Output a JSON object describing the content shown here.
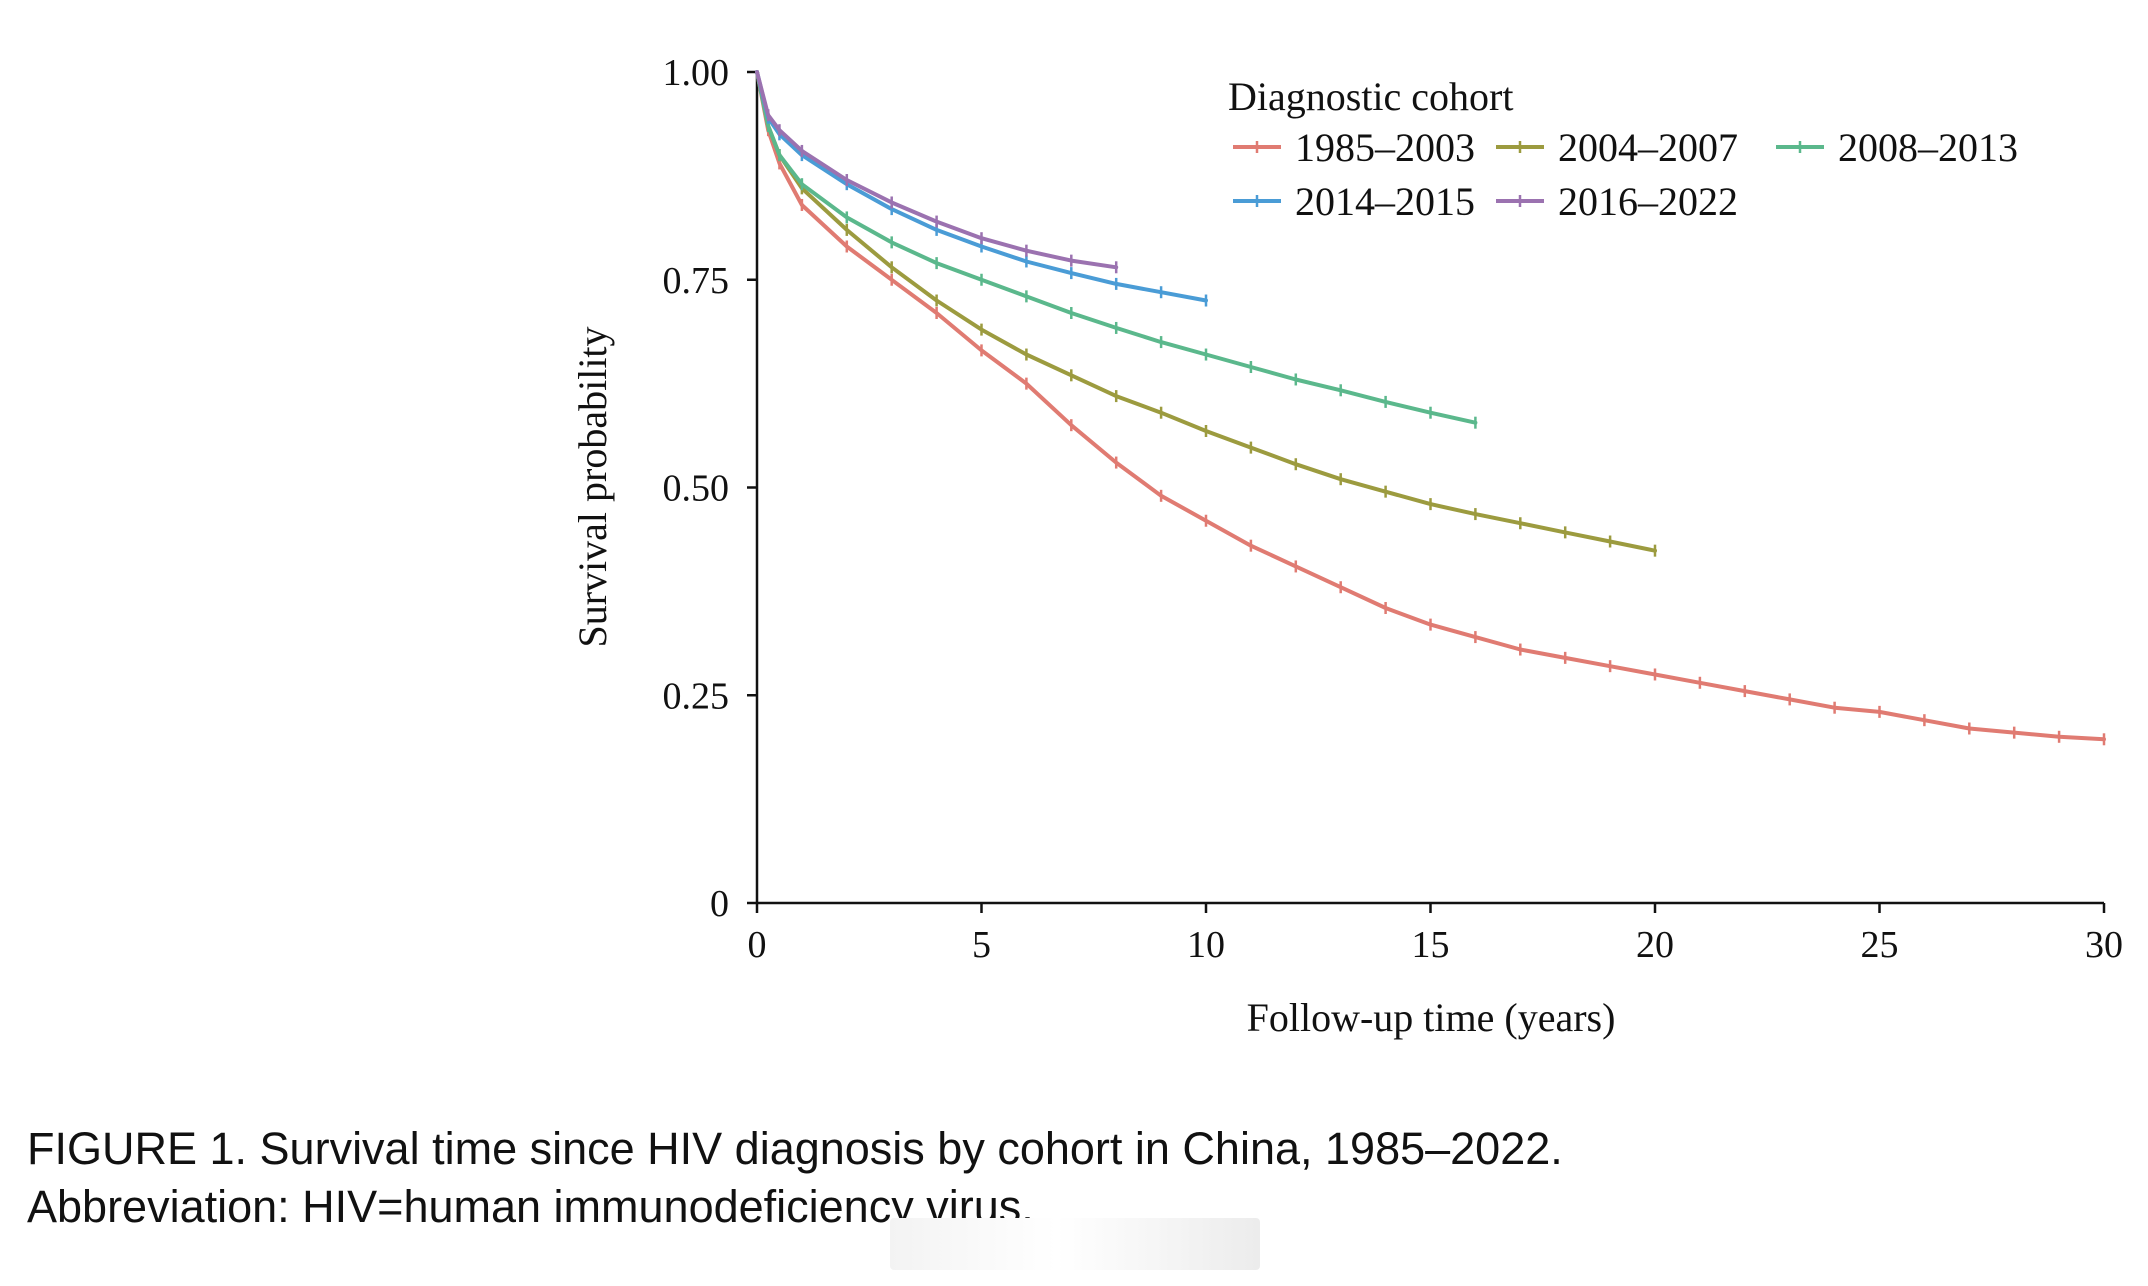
{
  "chart_data": {
    "type": "line",
    "title": "",
    "xlabel": "Follow-up time (years)",
    "ylabel": "Survival probability",
    "xlim": [
      0,
      30
    ],
    "ylim": [
      0,
      1
    ],
    "x_ticks": [
      "0",
      "5",
      "10",
      "15",
      "20",
      "25",
      "30"
    ],
    "x_tick_values": [
      0,
      5,
      10,
      15,
      20,
      25,
      30
    ],
    "y_ticks": [
      "0",
      "0.25",
      "0.50",
      "0.75",
      "1.00"
    ],
    "y_tick_values": [
      0,
      0.25,
      0.5,
      0.75,
      1.0
    ],
    "grid": false,
    "legend": {
      "title": "Diagnostic cohort",
      "placement": "top-right"
    },
    "series": [
      {
        "name": "1985–2003",
        "color": "#e07b72",
        "x": [
          0,
          0.25,
          0.5,
          1,
          2,
          3,
          4,
          5,
          6,
          7,
          8,
          9,
          10,
          11,
          12,
          13,
          14,
          15,
          16,
          17,
          18,
          19,
          20,
          21,
          22,
          23,
          24,
          25,
          26,
          27,
          28,
          29,
          30
        ],
        "y": [
          1.0,
          0.93,
          0.89,
          0.84,
          0.79,
          0.75,
          0.71,
          0.665,
          0.625,
          0.575,
          0.53,
          0.49,
          0.46,
          0.43,
          0.405,
          0.38,
          0.355,
          0.335,
          0.32,
          0.305,
          0.295,
          0.285,
          0.275,
          0.265,
          0.255,
          0.245,
          0.235,
          0.23,
          0.22,
          0.21,
          0.205,
          0.2,
          0.197
        ]
      },
      {
        "name": "2004–2007",
        "color": "#9c9b3f",
        "x": [
          0,
          0.25,
          0.5,
          1,
          2,
          3,
          4,
          5,
          6,
          7,
          8,
          9,
          10,
          11,
          12,
          13,
          14,
          15,
          16,
          17,
          18,
          19,
          20
        ],
        "y": [
          1.0,
          0.935,
          0.9,
          0.86,
          0.81,
          0.765,
          0.725,
          0.69,
          0.66,
          0.635,
          0.61,
          0.59,
          0.568,
          0.548,
          0.528,
          0.51,
          0.495,
          0.48,
          0.468,
          0.457,
          0.446,
          0.435,
          0.424
        ]
      },
      {
        "name": "2008–2013",
        "color": "#5bb88c",
        "x": [
          0,
          0.25,
          0.5,
          1,
          2,
          3,
          4,
          5,
          6,
          7,
          8,
          9,
          10,
          11,
          12,
          13,
          14,
          15,
          16
        ],
        "y": [
          1.0,
          0.935,
          0.9,
          0.865,
          0.825,
          0.795,
          0.77,
          0.75,
          0.73,
          0.71,
          0.692,
          0.675,
          0.66,
          0.645,
          0.63,
          0.617,
          0.603,
          0.59,
          0.578
        ]
      },
      {
        "name": "2014–2015",
        "color": "#4a9cd6",
        "x": [
          0,
          0.25,
          0.5,
          1,
          2,
          3,
          4,
          5,
          6,
          7,
          8,
          9,
          10
        ],
        "y": [
          1.0,
          0.945,
          0.925,
          0.9,
          0.865,
          0.835,
          0.81,
          0.79,
          0.772,
          0.758,
          0.745,
          0.735,
          0.725
        ]
      },
      {
        "name": "2016–2022",
        "color": "#9b72b0",
        "x": [
          0,
          0.25,
          0.5,
          1,
          2,
          3,
          4,
          5,
          6,
          7,
          8
        ],
        "y": [
          1.0,
          0.948,
          0.93,
          0.905,
          0.87,
          0.843,
          0.82,
          0.8,
          0.785,
          0.773,
          0.765
        ]
      }
    ]
  },
  "caption": {
    "line1": "FIGURE 1. Survival time since HIV diagnosis by cohort in China, 1985–2022.",
    "line2": "Abbreviation: HIV=human immunodeficiency virus."
  }
}
